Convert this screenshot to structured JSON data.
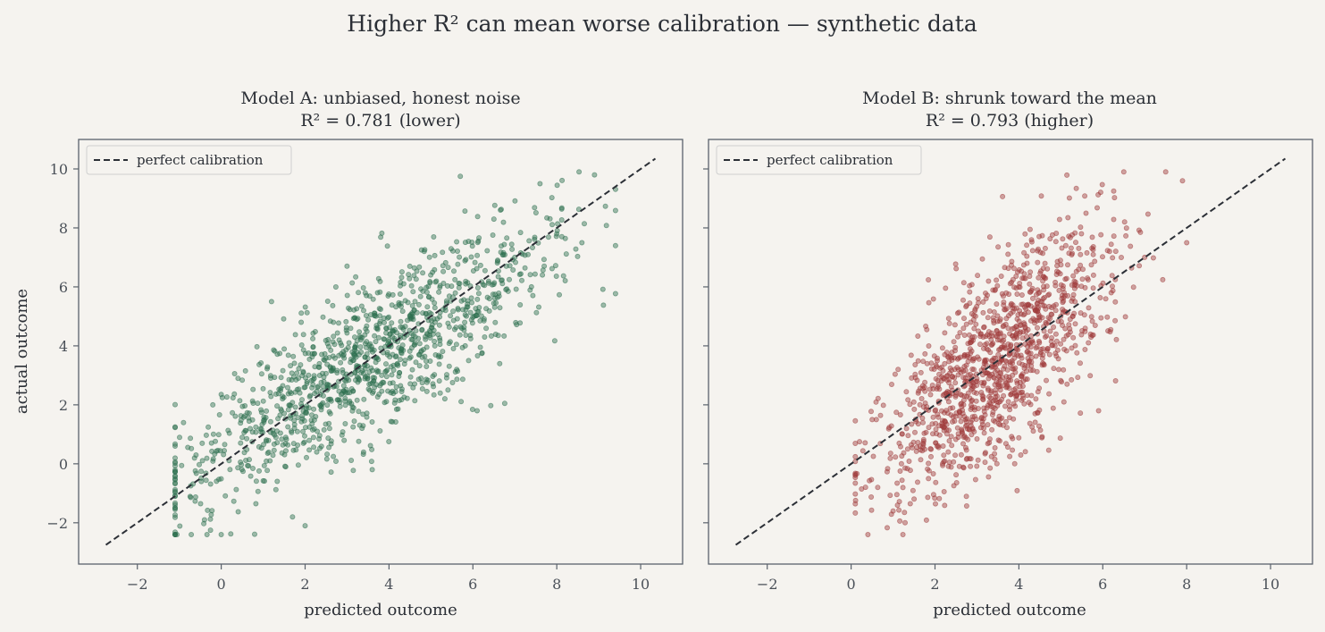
{
  "figure": {
    "title": "Higher R² can mean worse calibration — synthetic data",
    "colors": {
      "background": "#f5f3ef",
      "axes_edge": "#5a626c",
      "model_a": "#2e7050",
      "model_b": "#a03c3c",
      "reference": "#2b2f36"
    }
  },
  "chart_data": [
    {
      "type": "scatter",
      "title_line1": "Model A: unbiased, honest noise",
      "title_line2": "R² = 0.781 (lower)",
      "xlabel": "predicted outcome",
      "ylabel": "actual outcome",
      "xlim": [
        -3.4,
        11.0
      ],
      "ylim": [
        -3.4,
        11.0
      ],
      "xticks": [
        -2,
        0,
        2,
        4,
        6,
        8,
        10
      ],
      "yticks": [
        -2,
        0,
        2,
        4,
        6,
        8,
        10
      ],
      "tick_labels": [
        "−2",
        "0",
        "2",
        "4",
        "6",
        "8",
        "10"
      ],
      "legend": {
        "label": "perfect calibration",
        "position": "top-left"
      },
      "reference_line": {
        "from": [
          -2.75,
          -2.75
        ],
        "to": [
          10.35,
          10.35
        ],
        "style": "dashed"
      },
      "series": [
        {
          "color": "#2e7050",
          "point_count": 1200,
          "x_range_approx": [
            -1.1,
            9.4
          ],
          "y_range_approx": [
            -2.4,
            9.9
          ],
          "sample_points": [
            [
              -0.9,
              1.4
            ],
            [
              -0.6,
              0.3
            ],
            [
              -0.2,
              2.0
            ],
            [
              0.0,
              -2.4
            ],
            [
              0.0,
              2.35
            ],
            [
              0.5,
              0.9
            ],
            [
              1.2,
              5.5
            ],
            [
              1.7,
              -1.8
            ],
            [
              2.0,
              -2.1
            ],
            [
              2.0,
              2.6
            ],
            [
              3.0,
              6.7
            ],
            [
              3.0,
              2.9
            ],
            [
              3.6,
              -0.2
            ],
            [
              4.0,
              4.0
            ],
            [
              4.5,
              5.0
            ],
            [
              5.1,
              4.8
            ],
            [
              5.7,
              9.75
            ],
            [
              6.1,
              1.8
            ],
            [
              6.5,
              8.3
            ],
            [
              7.0,
              7.0
            ],
            [
              7.6,
              9.5
            ],
            [
              8.0,
              7.8
            ],
            [
              8.6,
              7.5
            ],
            [
              8.9,
              9.8
            ],
            [
              9.4,
              7.4
            ]
          ]
        }
      ]
    },
    {
      "type": "scatter",
      "title_line1": "Model B: shrunk toward the mean",
      "title_line2": "R² = 0.793 (higher)",
      "xlabel": "predicted outcome",
      "ylabel": "",
      "xlim": [
        -3.4,
        11.0
      ],
      "ylim": [
        -3.4,
        11.0
      ],
      "xticks": [
        -2,
        0,
        2,
        4,
        6,
        8,
        10
      ],
      "yticks": [
        -2,
        0,
        2,
        4,
        6,
        8,
        10
      ],
      "tick_labels": [
        "−2",
        "0",
        "2",
        "4",
        "6",
        "8",
        "10"
      ],
      "legend": {
        "label": "perfect calibration",
        "position": "top-left"
      },
      "reference_line": {
        "from": [
          -2.75,
          -2.75
        ],
        "to": [
          10.35,
          10.35
        ],
        "style": "dashed"
      },
      "series": [
        {
          "color": "#a03c3c",
          "point_count": 1200,
          "x_range_approx": [
            0.1,
            8.1
          ],
          "y_range_approx": [
            -2.4,
            9.9
          ],
          "sample_points": [
            [
              0.2,
              0.75
            ],
            [
              0.4,
              -2.4
            ],
            [
              0.6,
              1.5
            ],
            [
              1.0,
              -1.6
            ],
            [
              1.2,
              0.0
            ],
            [
              1.6,
              2.4
            ],
            [
              2.0,
              1.8
            ],
            [
              2.4,
              3.6
            ],
            [
              3.0,
              2.8
            ],
            [
              3.5,
              4.2
            ],
            [
              3.9,
              0.0
            ],
            [
              4.0,
              6.0
            ],
            [
              4.3,
              7.6
            ],
            [
              4.6,
              4.5
            ],
            [
              5.0,
              5.0
            ],
            [
              5.6,
              8.5
            ],
            [
              5.9,
              1.8
            ],
            [
              6.2,
              5.8
            ],
            [
              6.5,
              9.9
            ],
            [
              7.0,
              7.0
            ],
            [
              7.5,
              9.9
            ],
            [
              7.9,
              9.6
            ],
            [
              8.0,
              7.5
            ]
          ]
        }
      ]
    }
  ]
}
